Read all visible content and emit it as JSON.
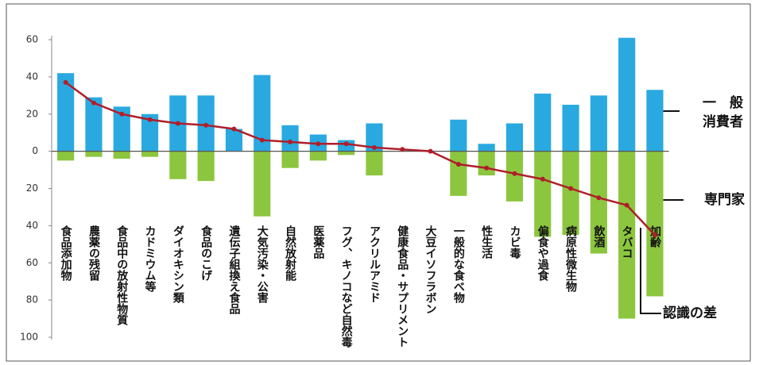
{
  "chart_data": {
    "type": "bar",
    "categories": [
      "食品添加物",
      "農薬の残留",
      "食品中の放射性物質",
      "カドミウム等",
      "ダイオキシン類",
      "食品のこげ",
      "遺伝子組換え食品",
      "大気汚染・公害",
      "自然放射能",
      "医薬品",
      "フグ、キノコなど自然毒",
      "アクリルアミド",
      "健康食品・サプリメント",
      "大豆イソフラボン",
      "一般的な食べ物",
      "性生活",
      "カビ毒",
      "偏食や過食",
      "病原性微生物",
      "飲酒",
      "タバコ",
      "加齢"
    ],
    "series": [
      {
        "name": "一　般\n消費者",
        "type": "bar",
        "color": "#29a9e0",
        "values": [
          42,
          29,
          24,
          20,
          30,
          30,
          12,
          41,
          14,
          9,
          6,
          15,
          0,
          0,
          17,
          4,
          15,
          31,
          25,
          30,
          61,
          33
        ]
      },
      {
        "name": "専門家",
        "type": "bar",
        "color": "#8cc63f",
        "values": [
          -5,
          -3,
          -4,
          -3,
          -15,
          -16,
          0,
          -35,
          -9,
          -5,
          -2,
          -13,
          0,
          0,
          -24,
          -13,
          -27,
          -46,
          -45,
          -55,
          -90,
          -78
        ]
      },
      {
        "name": "認識の差",
        "type": "line",
        "color": "#b01e2a",
        "values": [
          37,
          26,
          20,
          17,
          15,
          14,
          12,
          6,
          5,
          4,
          4,
          2,
          1,
          0,
          -7,
          -9,
          -12,
          -15,
          -20,
          -25,
          -29,
          -45
        ]
      }
    ],
    "ylim": [
      -100,
      60
    ],
    "yticks": [
      60,
      40,
      20,
      0,
      {
        "value": -20,
        "label": "20"
      },
      {
        "value": -40,
        "label": "40"
      },
      {
        "value": -60,
        "label": "60"
      },
      {
        "value": -80,
        "label": "80"
      },
      {
        "value": -100,
        "label": "100"
      }
    ]
  }
}
